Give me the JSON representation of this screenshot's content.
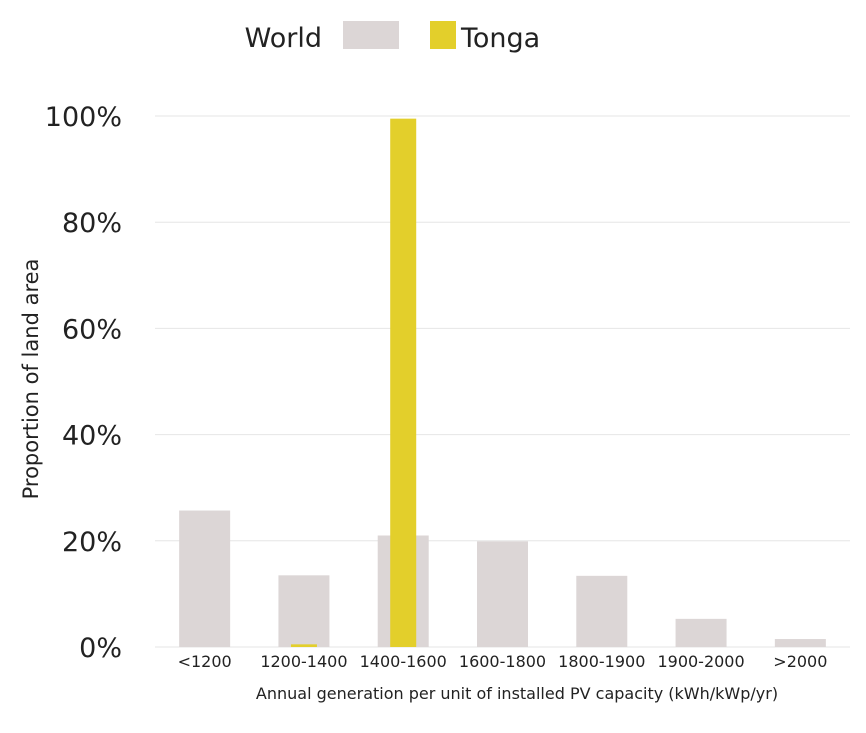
{
  "chart_data": {
    "type": "bar",
    "title": "",
    "xlabel": "Annual generation per unit of installed PV capacity (kWh/kWp/yr)",
    "ylabel": "Proportion of land area",
    "categories": [
      "<1200",
      "1200-1400",
      "1400-1600",
      "1600-1800",
      "1800-1900",
      "1900-2000",
      ">2000"
    ],
    "ylim": [
      0,
      100
    ],
    "yticks": [
      "0%",
      "20%",
      "40%",
      "60%",
      "80%",
      "100%"
    ],
    "ytick_values": [
      0,
      20,
      40,
      60,
      80,
      100
    ],
    "grid": true,
    "legend_position": "top",
    "series": [
      {
        "name": "World",
        "color": "#dcd6d6",
        "values": [
          25.7,
          13.5,
          21.0,
          19.9,
          13.4,
          5.3,
          1.5
        ]
      },
      {
        "name": "Tonga",
        "color": "#e3cf2b",
        "values": [
          0,
          0.5,
          99.5,
          0,
          0,
          0,
          0
        ]
      }
    ]
  }
}
